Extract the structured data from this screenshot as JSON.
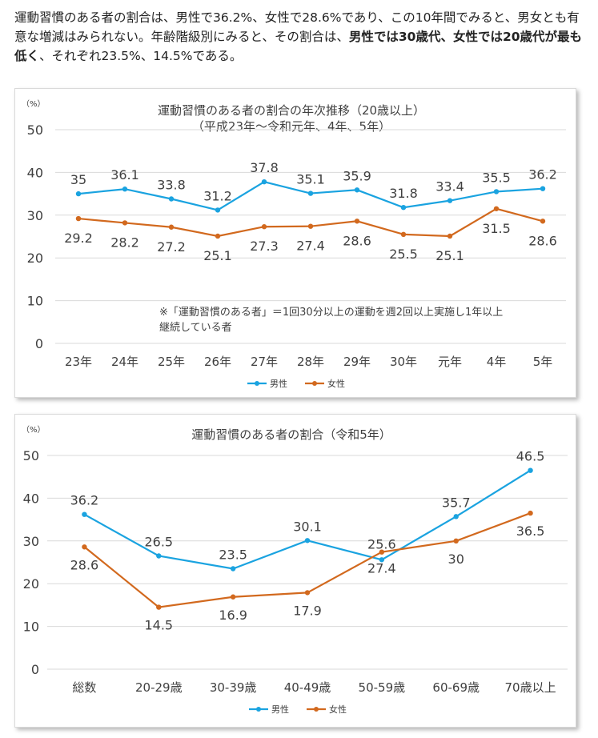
{
  "intro": {
    "p1": "運動習慣のある者の割合は、男性で36.2%、女性で28.6%であり、この10年間でみると、男女とも有意な増減はみられない。年齢階級別にみると、その割合は、",
    "b1": "男性では30歳代、女性では20歳代が最も低く",
    "p2": "、それぞれ23.5%、14.5%である。"
  },
  "colors": {
    "male": "#1aa3e0",
    "female": "#d2691e",
    "grid": "#d9d9d9",
    "text": "#404040"
  },
  "chart_data": [
    {
      "type": "line",
      "title": "運動習慣のある者の割合の年次推移（20歳以上）",
      "subtitle": "（平成23年～令和元年、4年、5年）",
      "unit": "（%）",
      "categories": [
        "23年",
        "24年",
        "25年",
        "26年",
        "27年",
        "28年",
        "29年",
        "30年",
        "元年",
        "4年",
        "5年"
      ],
      "series": [
        {
          "name": "男性",
          "values": [
            35.0,
            36.1,
            33.8,
            31.2,
            37.8,
            35.1,
            35.9,
            31.8,
            33.4,
            35.5,
            36.2
          ]
        },
        {
          "name": "女性",
          "values": [
            29.2,
            28.2,
            27.2,
            25.1,
            27.3,
            27.4,
            28.6,
            25.5,
            25.1,
            31.5,
            28.6
          ]
        }
      ],
      "ylim": [
        0,
        50
      ],
      "yticks": [
        "0",
        "10",
        "20",
        "30",
        "40",
        "50"
      ],
      "grid": true,
      "legend": "bottom",
      "note_line1": "※「運動習慣のある者」＝1回30分以上の運動を週2回以上実施し1年以上",
      "note_line2": "継続している者"
    },
    {
      "type": "line",
      "title": "運動習慣のある者の割合（令和5年）",
      "unit": "（%）",
      "categories": [
        "総数",
        "20-29歳",
        "30-39歳",
        "40-49歳",
        "50-59歳",
        "60-69歳",
        "70歳以上"
      ],
      "series": [
        {
          "name": "男性",
          "values": [
            36.2,
            26.5,
            23.5,
            30.1,
            25.6,
            35.7,
            46.5
          ]
        },
        {
          "name": "女性",
          "values": [
            28.6,
            14.5,
            16.9,
            17.9,
            27.4,
            30.0,
            36.5
          ]
        }
      ],
      "ylim": [
        0,
        50
      ],
      "yticks": [
        "0",
        "10",
        "20",
        "30",
        "40",
        "50"
      ],
      "grid": true,
      "legend": "bottom"
    }
  ]
}
